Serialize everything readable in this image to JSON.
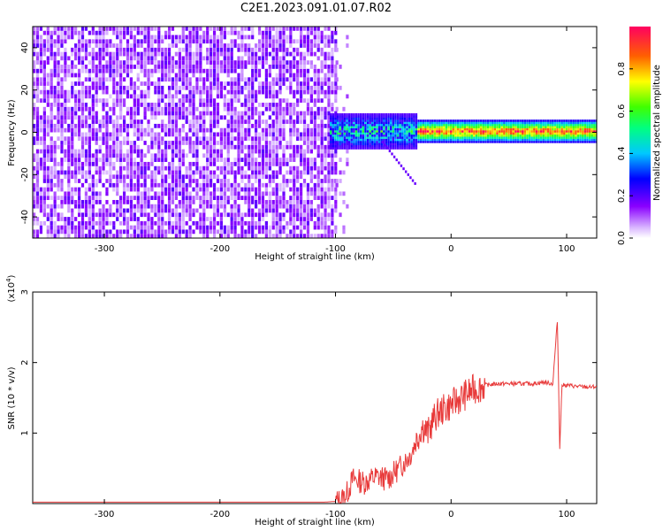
{
  "title": "C2E1.2023.091.01.07.R02",
  "colorbar": {
    "label": "Normalized spectral amplitude",
    "ticks": [
      "0.0",
      "0.2",
      "0.4",
      "0.6",
      "0.8"
    ],
    "tick_values": [
      0.0,
      0.2,
      0.4,
      0.6,
      0.8
    ],
    "range": [
      0,
      1
    ]
  },
  "chart_data": [
    {
      "type": "heatmap",
      "xlabel": "Height of straight line (km)",
      "ylabel": "Frequency (Hz)",
      "xlim": [
        -362,
        126
      ],
      "ylim": [
        -50,
        50
      ],
      "xticks": [
        -300,
        -200,
        -100,
        0,
        100
      ],
      "yticks": [
        -40,
        -20,
        0,
        20,
        40
      ],
      "colormap": "rainbow (white-violet to red)",
      "description_points": [
        {
          "x_range": [
            -362,
            -100
          ],
          "freq_range": [
            -50,
            50
          ],
          "amplitude": "low noise 0.0-0.2"
        },
        {
          "x_range": [
            -100,
            126
          ],
          "freq_center": 0,
          "amplitude": "signal band 0.4-1.0"
        }
      ]
    },
    {
      "type": "line",
      "xlabel": "Height of straight line (km)",
      "ylabel": "SNR (10 * v/v)",
      "y_multiplier": "(x10",
      "y_multiplier_exp": "4",
      "y_multiplier_close": ")",
      "xlim": [
        -362,
        126
      ],
      "ylim": [
        0,
        3
      ],
      "xticks": [
        -300,
        -200,
        -100,
        0,
        100
      ],
      "yticks": [
        1,
        2,
        3
      ],
      "series": [
        {
          "color": "#e83a3a",
          "x": [
            -362,
            -300,
            -200,
            -110,
            -100,
            -95,
            -90,
            -85,
            -75,
            -65,
            -55,
            -45,
            -35,
            -30,
            -25,
            -20,
            -15,
            -10,
            -5,
            0,
            10,
            20,
            30,
            40,
            50,
            60,
            70,
            80,
            88,
            92,
            94,
            96,
            100,
            110,
            120,
            126
          ],
          "y": [
            0.02,
            0.02,
            0.02,
            0.02,
            0.03,
            0.05,
            0.15,
            0.35,
            0.3,
            0.38,
            0.35,
            0.5,
            0.7,
            0.9,
            1.1,
            1.0,
            1.2,
            1.3,
            1.35,
            1.4,
            1.52,
            1.62,
            1.68,
            1.7,
            1.7,
            1.7,
            1.7,
            1.72,
            1.7,
            2.6,
            0.8,
            1.68,
            1.68,
            1.66,
            1.65,
            1.66
          ]
        }
      ]
    }
  ]
}
